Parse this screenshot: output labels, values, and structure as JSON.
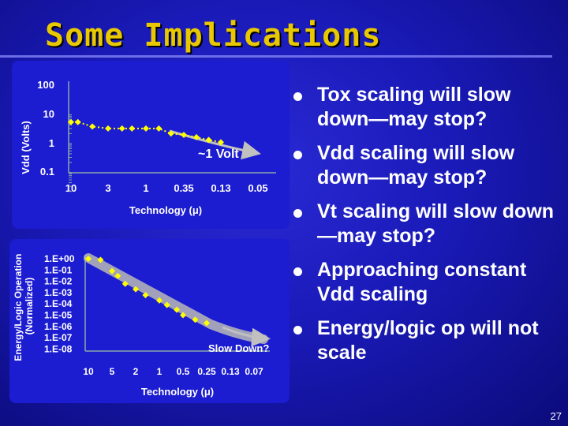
{
  "slide": {
    "title": "Some Implications",
    "page_number": "27"
  },
  "bullets": [
    {
      "text": "Tox scaling will slow down—may stop?"
    },
    {
      "text": "Vdd scaling will slow down—may stop?"
    },
    {
      "text": "Vt scaling will slow down—may stop?"
    },
    {
      "text": "Approaching constant Vdd scaling"
    },
    {
      "text": "Energy/logic op will not scale"
    }
  ],
  "colors": {
    "title": "#e8c800",
    "marker": "#ffff00",
    "trend": "#c0c0c0",
    "text": "#ffffff"
  },
  "chart_data": [
    {
      "type": "scatter",
      "xlabel": "Technology (μ)",
      "ylabel": "Vdd (Volts)",
      "x_tick_labels": [
        "10",
        "3",
        "1",
        "0.35",
        "0.13",
        "0.05"
      ],
      "y_tick_labels": [
        "100",
        "10",
        "1",
        "0.1"
      ],
      "y_scale": "log",
      "ylim": [
        0.1,
        100
      ],
      "annotation": "~1 Volt",
      "series": [
        {
          "x": [
            10,
            8,
            5,
            3,
            2,
            1.5,
            1,
            0.7,
            0.5,
            0.35,
            0.25,
            0.18,
            0.13
          ],
          "y": [
            5,
            5,
            3.5,
            3,
            3,
            3,
            3,
            3,
            2,
            1.8,
            1.5,
            1.2,
            1.0
          ]
        }
      ],
      "trend": "dotted yellow line through points, solid gray arrow continuing to ~1 V"
    },
    {
      "type": "scatter",
      "xlabel": "Technology (μ)",
      "ylabel": "Energy/Logic Operation (Normalized)",
      "x_tick_labels": [
        "10",
        "5",
        "2",
        "1",
        "0.5",
        "0.25",
        "0.13",
        "0.07"
      ],
      "y_tick_labels": [
        "1.E+00",
        "1.E-01",
        "1.E-02",
        "1.E-03",
        "1.E-04",
        "1.E-05",
        "1.E-06",
        "1.E-07",
        "1.E-08"
      ],
      "y_scale": "log",
      "ylim": [
        1e-08,
        1
      ],
      "annotation": "Slow Down?",
      "series": [
        {
          "x": [
            10,
            7,
            5,
            4,
            3,
            2,
            1.5,
            1,
            0.8,
            0.6,
            0.5,
            0.35,
            0.25
          ],
          "y": [
            1,
            0.8,
            0.08,
            0.03,
            0.006,
            0.002,
            0.0006,
            0.0002,
            8e-05,
            3e-05,
            1e-05,
            4e-06,
            2e-06
          ]
        }
      ],
      "trend": "broad gray diagonal band with arrow flattening at the end"
    }
  ]
}
